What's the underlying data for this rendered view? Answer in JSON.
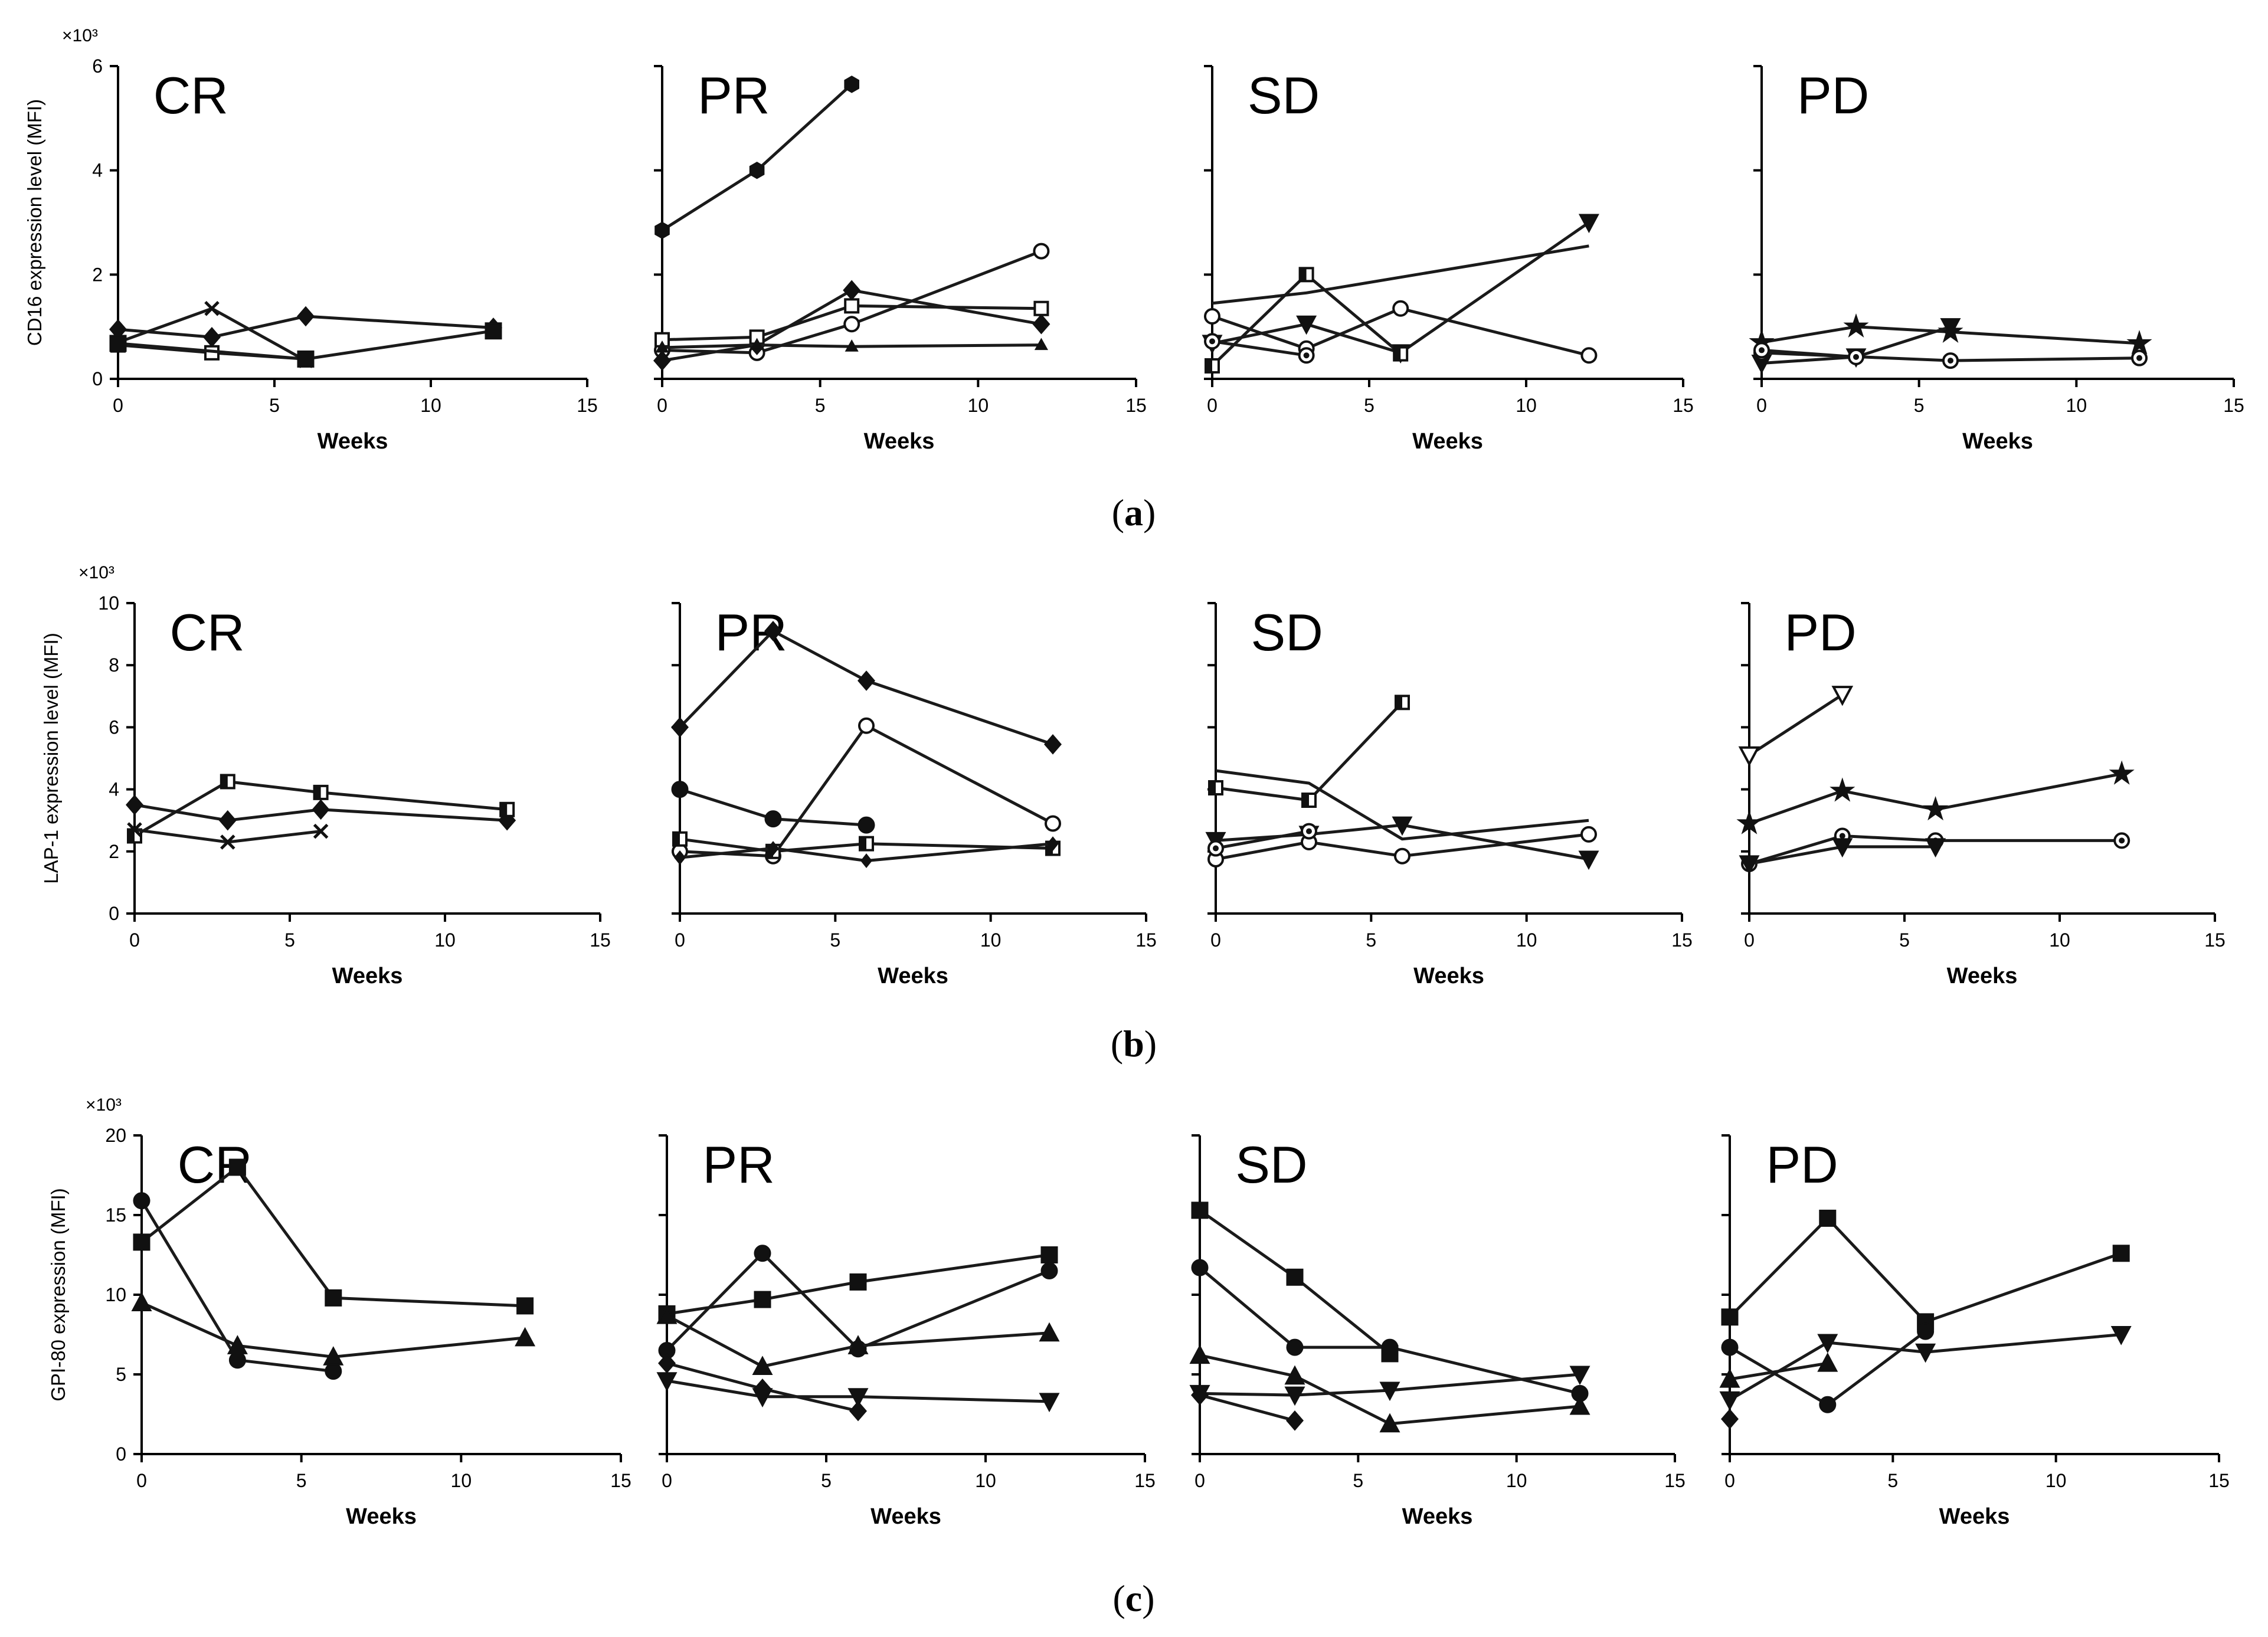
{
  "figure": {
    "panel_captions": [
      "a",
      "b",
      "c"
    ]
  },
  "chart_data": [
    {
      "panel": "a",
      "type": "line",
      "group": "CR",
      "title": "CR",
      "xlabel": "Weeks",
      "ylabel": "CD16 expression level (MFI)",
      "y_multiplier": "×10³",
      "xlim": [
        0,
        15
      ],
      "ylim": [
        0,
        6
      ],
      "xticks": [
        0,
        5,
        10,
        15
      ],
      "yticks": [
        0,
        2,
        4,
        6
      ],
      "series": [
        {
          "marker": "diamond",
          "x": [
            0,
            3,
            6,
            12
          ],
          "y": [
            0.95,
            0.8,
            1.2,
            0.98
          ]
        },
        {
          "marker": "x",
          "x": [
            0,
            3,
            6
          ],
          "y": [
            0.7,
            1.35,
            0.35
          ]
        },
        {
          "marker": "square-open",
          "x": [
            0,
            3,
            6
          ],
          "y": [
            0.65,
            0.5,
            0.38
          ]
        },
        {
          "marker": "square",
          "x": [
            0,
            6,
            12
          ],
          "y": [
            0.68,
            0.38,
            0.92
          ]
        }
      ]
    },
    {
      "panel": "a",
      "type": "line",
      "group": "PR",
      "title": "PR",
      "xlabel": "Weeks",
      "ylabel": "",
      "y_multiplier": "",
      "xlim": [
        0,
        15
      ],
      "ylim": [
        0,
        6
      ],
      "xticks": [
        0,
        5,
        10,
        15
      ],
      "yticks": [
        0,
        2,
        4,
        6
      ],
      "series": [
        {
          "marker": "hexagon",
          "x": [
            0,
            3,
            6
          ],
          "y": [
            2.85,
            4.0,
            5.65
          ]
        },
        {
          "marker": "circle-open",
          "x": [
            0,
            3,
            6,
            12
          ],
          "y": [
            0.55,
            0.5,
            1.05,
            2.45
          ]
        },
        {
          "marker": "diamond",
          "x": [
            0,
            3,
            6,
            12
          ],
          "y": [
            0.35,
            0.65,
            1.7,
            1.05
          ]
        },
        {
          "marker": "square-open",
          "x": [
            0,
            3,
            6,
            12
          ],
          "y": [
            0.75,
            0.8,
            1.4,
            1.35
          ]
        },
        {
          "marker": "triangle-small",
          "x": [
            0,
            3,
            6,
            12
          ],
          "y": [
            0.6,
            0.65,
            0.62,
            0.65
          ]
        }
      ]
    },
    {
      "panel": "a",
      "type": "line",
      "group": "SD",
      "title": "SD",
      "xlabel": "Weeks",
      "ylabel": "",
      "y_multiplier": "",
      "xlim": [
        0,
        15
      ],
      "ylim": [
        0,
        6
      ],
      "xticks": [
        0,
        5,
        10,
        15
      ],
      "yticks": [
        0,
        2,
        4,
        6
      ],
      "series": [
        {
          "marker": "circle-open",
          "x": [
            0,
            3,
            6,
            12
          ],
          "y": [
            1.2,
            0.58,
            1.35,
            0.45
          ]
        },
        {
          "marker": "triangle-down",
          "x": [
            0,
            3,
            6,
            12
          ],
          "y": [
            0.68,
            1.05,
            0.5,
            3.0
          ]
        },
        {
          "marker": "square-half",
          "x": [
            0,
            3,
            6
          ],
          "y": [
            0.25,
            2.0,
            0.48
          ]
        },
        {
          "marker": "circle-dot",
          "x": [
            0,
            3
          ],
          "y": [
            0.72,
            0.45
          ]
        },
        {
          "marker": "none",
          "x": [
            0,
            3,
            12
          ],
          "y": [
            1.45,
            1.65,
            2.55
          ]
        }
      ]
    },
    {
      "panel": "a",
      "type": "line",
      "group": "PD",
      "title": "PD",
      "xlabel": "Weeks",
      "ylabel": "",
      "y_multiplier": "",
      "xlim": [
        0,
        15
      ],
      "ylim": [
        0,
        6
      ],
      "xticks": [
        0,
        5,
        10,
        15
      ],
      "yticks": [
        0,
        2,
        4,
        6
      ],
      "series": [
        {
          "marker": "star",
          "x": [
            0,
            3,
            6,
            12
          ],
          "y": [
            0.7,
            1.0,
            0.9,
            0.68
          ]
        },
        {
          "marker": "triangle-down",
          "x": [
            0,
            3,
            6
          ],
          "y": [
            0.3,
            0.42,
            1.0
          ]
        },
        {
          "marker": "circle-dot",
          "x": [
            0,
            6,
            12
          ],
          "y": [
            0.5,
            0.35,
            0.4
          ]
        },
        {
          "marker": "circle-dot",
          "x": [
            0,
            3
          ],
          "y": [
            0.55,
            0.42
          ]
        }
      ]
    },
    {
      "panel": "b",
      "type": "line",
      "group": "CR",
      "title": "CR",
      "xlabel": "Weeks",
      "ylabel": "LAP-1 expression level (MFI)",
      "y_multiplier": "×10³",
      "xlim": [
        0,
        15
      ],
      "ylim": [
        0,
        10
      ],
      "xticks": [
        0,
        5,
        10,
        15
      ],
      "yticks": [
        0,
        2,
        4,
        6,
        8,
        10
      ],
      "series": [
        {
          "marker": "diamond",
          "x": [
            0,
            3,
            6,
            12
          ],
          "y": [
            3.5,
            3.0,
            3.35,
            3.0
          ]
        },
        {
          "marker": "square-half",
          "x": [
            0,
            3,
            6,
            12
          ],
          "y": [
            2.5,
            4.25,
            3.9,
            3.35
          ]
        },
        {
          "marker": "x",
          "x": [
            0,
            3,
            6
          ],
          "y": [
            2.7,
            2.3,
            2.65
          ]
        }
      ]
    },
    {
      "panel": "b",
      "type": "line",
      "group": "PR",
      "title": "PR",
      "xlabel": "Weeks",
      "ylabel": "",
      "y_multiplier": "",
      "xlim": [
        0,
        15
      ],
      "ylim": [
        0,
        10
      ],
      "xticks": [
        0,
        5,
        10,
        15
      ],
      "yticks": [
        0,
        2,
        4,
        6,
        8,
        10
      ],
      "series": [
        {
          "marker": "diamond",
          "x": [
            0,
            3,
            6,
            12
          ],
          "y": [
            6.0,
            9.1,
            7.5,
            5.45
          ]
        },
        {
          "marker": "circle",
          "x": [
            0,
            3,
            6
          ],
          "y": [
            4.0,
            3.05,
            2.85
          ]
        },
        {
          "marker": "circle-open",
          "x": [
            0,
            3,
            6,
            12
          ],
          "y": [
            2.0,
            1.85,
            6.05,
            2.9
          ]
        },
        {
          "marker": "square-half",
          "x": [
            0,
            3,
            6,
            12
          ],
          "y": [
            2.4,
            2.0,
            2.25,
            2.1
          ]
        },
        {
          "marker": "diamond-small",
          "x": [
            0,
            3,
            6,
            12
          ],
          "y": [
            1.8,
            2.1,
            1.7,
            2.25
          ]
        }
      ]
    },
    {
      "panel": "b",
      "type": "line",
      "group": "SD",
      "title": "SD",
      "xlabel": "Weeks",
      "ylabel": "",
      "y_multiplier": "",
      "xlim": [
        0,
        15
      ],
      "ylim": [
        0,
        10
      ],
      "xticks": [
        0,
        5,
        10,
        15
      ],
      "yticks": [
        0,
        2,
        4,
        6,
        8,
        10
      ],
      "series": [
        {
          "marker": "square-half",
          "x": [
            0,
            3,
            6
          ],
          "y": [
            4.05,
            3.65,
            6.8
          ]
        },
        {
          "marker": "triangle-down",
          "x": [
            0,
            3,
            6,
            12
          ],
          "y": [
            2.35,
            2.55,
            2.85,
            1.75
          ]
        },
        {
          "marker": "circle-open",
          "x": [
            0,
            3,
            6,
            12
          ],
          "y": [
            1.75,
            2.3,
            1.85,
            2.55
          ]
        },
        {
          "marker": "circle-dot",
          "x": [
            0,
            3
          ],
          "y": [
            2.1,
            2.65
          ]
        },
        {
          "marker": "none",
          "x": [
            0,
            3,
            6,
            12
          ],
          "y": [
            4.6,
            4.2,
            2.4,
            3.0
          ]
        }
      ]
    },
    {
      "panel": "b",
      "type": "line",
      "group": "PD",
      "title": "PD",
      "xlabel": "Weeks",
      "ylabel": "",
      "y_multiplier": "",
      "xlim": [
        0,
        15
      ],
      "ylim": [
        0,
        10
      ],
      "xticks": [
        0,
        5,
        10,
        15
      ],
      "yticks": [
        0,
        2,
        4,
        6,
        8,
        10
      ],
      "series": [
        {
          "marker": "triangle-down-open",
          "x": [
            0,
            3
          ],
          "y": [
            5.1,
            7.05
          ]
        },
        {
          "marker": "star",
          "x": [
            0,
            3,
            6,
            12
          ],
          "y": [
            2.9,
            3.95,
            3.35,
            4.5
          ]
        },
        {
          "marker": "circle-dot",
          "x": [
            0,
            3,
            6,
            12
          ],
          "y": [
            1.6,
            2.5,
            2.35,
            2.35
          ]
        },
        {
          "marker": "triangle-down",
          "x": [
            0,
            3,
            6
          ],
          "y": [
            1.6,
            2.15,
            2.15
          ]
        }
      ]
    },
    {
      "panel": "c",
      "type": "line",
      "group": "CR",
      "title": "CR",
      "xlabel": "Weeks",
      "ylabel": "GPI-80 expression (MFI)",
      "y_multiplier": "×10³",
      "xlim": [
        0,
        15
      ],
      "ylim": [
        0,
        20
      ],
      "xticks": [
        0,
        5,
        10,
        15
      ],
      "yticks": [
        0,
        5,
        10,
        15,
        20
      ],
      "series": [
        {
          "marker": "square",
          "x": [
            0,
            3,
            6,
            12
          ],
          "y": [
            13.3,
            18.0,
            9.8,
            9.3
          ]
        },
        {
          "marker": "circle",
          "x": [
            0,
            3,
            6
          ],
          "y": [
            15.9,
            5.9,
            5.2
          ]
        },
        {
          "marker": "triangle",
          "x": [
            0,
            3,
            6,
            12
          ],
          "y": [
            9.5,
            6.8,
            6.1,
            7.3
          ]
        }
      ]
    },
    {
      "panel": "c",
      "type": "line",
      "group": "PR",
      "title": "PR",
      "xlabel": "Weeks",
      "ylabel": "",
      "y_multiplier": "",
      "xlim": [
        0,
        15
      ],
      "ylim": [
        0,
        20
      ],
      "xticks": [
        0,
        5,
        10,
        15
      ],
      "yticks": [
        0,
        5,
        10,
        15,
        20
      ],
      "series": [
        {
          "marker": "square",
          "x": [
            0,
            3,
            6,
            12
          ],
          "y": [
            8.8,
            9.7,
            10.8,
            12.5
          ]
        },
        {
          "marker": "circle",
          "x": [
            0,
            3,
            6,
            12
          ],
          "y": [
            6.5,
            12.6,
            6.6,
            11.5
          ]
        },
        {
          "marker": "triangle",
          "x": [
            0,
            3,
            6,
            12
          ],
          "y": [
            8.7,
            5.5,
            6.8,
            7.6
          ]
        },
        {
          "marker": "diamond",
          "x": [
            0,
            3,
            6
          ],
          "y": [
            5.7,
            4.1,
            2.7
          ]
        },
        {
          "marker": "triangle-down",
          "x": [
            0,
            3,
            6,
            12
          ],
          "y": [
            4.6,
            3.6,
            3.6,
            3.3
          ]
        }
      ]
    },
    {
      "panel": "c",
      "type": "line",
      "group": "SD",
      "title": "SD",
      "xlabel": "Weeks",
      "ylabel": "",
      "y_multiplier": "",
      "xlim": [
        0,
        15
      ],
      "ylim": [
        0,
        20
      ],
      "xticks": [
        0,
        5,
        10,
        15
      ],
      "yticks": [
        0,
        5,
        10,
        15,
        20
      ],
      "series": [
        {
          "marker": "square",
          "x": [
            0,
            3,
            6
          ],
          "y": [
            15.3,
            11.1,
            6.3
          ]
        },
        {
          "marker": "circle",
          "x": [
            0,
            3,
            6,
            12
          ],
          "y": [
            11.7,
            6.7,
            6.7,
            3.8
          ]
        },
        {
          "marker": "triangle",
          "x": [
            0,
            3,
            6,
            12
          ],
          "y": [
            6.2,
            4.9,
            1.9,
            3.0
          ]
        },
        {
          "marker": "triangle-down",
          "x": [
            0,
            3,
            6,
            12
          ],
          "y": [
            3.8,
            3.7,
            4.0,
            5.0
          ]
        },
        {
          "marker": "diamond",
          "x": [
            0,
            3
          ],
          "y": [
            3.7,
            2.1
          ]
        }
      ]
    },
    {
      "panel": "c",
      "type": "line",
      "group": "PD",
      "title": "PD",
      "xlabel": "Weeks",
      "ylabel": "",
      "y_multiplier": "",
      "xlim": [
        0,
        15
      ],
      "ylim": [
        0,
        20
      ],
      "xticks": [
        0,
        5,
        10,
        15
      ],
      "yticks": [
        0,
        5,
        10,
        15,
        20
      ],
      "series": [
        {
          "marker": "square",
          "x": [
            0,
            3,
            6,
            12
          ],
          "y": [
            8.6,
            14.8,
            8.3,
            12.6
          ]
        },
        {
          "marker": "circle",
          "x": [
            0,
            3,
            6
          ],
          "y": [
            6.7,
            3.1,
            7.7
          ]
        },
        {
          "marker": "triangle-down",
          "x": [
            0,
            3,
            6,
            12
          ],
          "y": [
            3.4,
            7.0,
            6.4,
            7.5
          ]
        },
        {
          "marker": "triangle",
          "x": [
            0,
            3
          ],
          "y": [
            4.7,
            5.7
          ]
        },
        {
          "marker": "diamond",
          "x": [
            0
          ],
          "y": [
            2.2
          ]
        }
      ]
    }
  ]
}
